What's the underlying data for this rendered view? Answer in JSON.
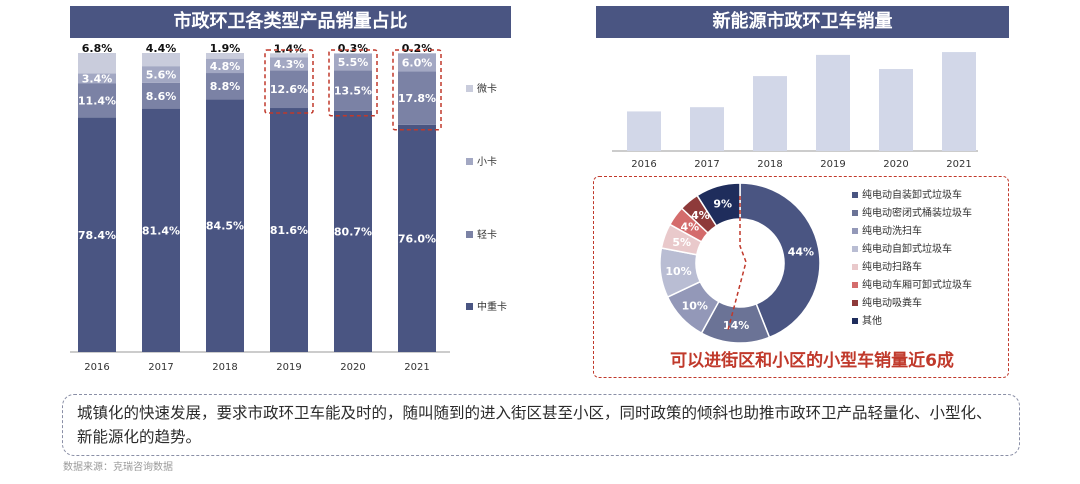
{
  "left_panel": {
    "title": "市政环卫各类型产品销量占比"
  },
  "right_panel": {
    "title": "新能源市政环卫车销量"
  },
  "chart_data": [
    {
      "type": "bar",
      "stacked": true,
      "categories": [
        "2016",
        "2017",
        "2018",
        "2019",
        "2020",
        "2021"
      ],
      "series": [
        {
          "name": "中重卡",
          "color": "#4a5582",
          "values": [
            78.4,
            81.4,
            84.5,
            81.6,
            80.7,
            76.0
          ],
          "labels": [
            "78.4%",
            "81.4%",
            "84.5%",
            "81.6%",
            "80.7%",
            "76.0%"
          ]
        },
        {
          "name": "轻卡",
          "color": "#7b82a5",
          "values": [
            11.4,
            8.6,
            8.8,
            12.6,
            13.5,
            17.8
          ],
          "labels": [
            "11.4%",
            "8.6%",
            "8.8%",
            "12.6%",
            "13.5%",
            "17.8%"
          ]
        },
        {
          "name": "小卡",
          "color": "#a3a8c3",
          "values": [
            3.4,
            5.6,
            4.8,
            4.3,
            5.5,
            6.0
          ],
          "labels": [
            "3.4%",
            "5.6%",
            "4.8%",
            "4.3%",
            "5.5%",
            "6.0%"
          ]
        },
        {
          "name": "微卡",
          "color": "#c9ccdc",
          "values": [
            6.8,
            4.4,
            1.9,
            1.4,
            0.3,
            0.2
          ],
          "labels": [
            "6.8%",
            "4.4%",
            "1.9%",
            "1.4%",
            "0.3%",
            "0.2%"
          ]
        }
      ],
      "legend_position": "right",
      "highlighted_categories": [
        "2019",
        "2020",
        "2021"
      ],
      "ylim": [
        0,
        100
      ]
    },
    {
      "type": "bar",
      "categories": [
        "2016",
        "2017",
        "2018",
        "2019",
        "2020",
        "2021"
      ],
      "values": [
        28,
        31,
        53,
        68,
        58,
        70
      ],
      "color": "#d2d7e8",
      "value_axis_shown": false
    },
    {
      "type": "pie",
      "donut": true,
      "slices": [
        {
          "name": "纯电动自装卸式垃圾车",
          "value": 44,
          "label": "44%",
          "color": "#4a5582"
        },
        {
          "name": "纯电动密闭式桶装垃圾车",
          "value": 14,
          "label": "14%",
          "color": "#6b7396"
        },
        {
          "name": "纯电动洗扫车",
          "value": 10,
          "label": "10%",
          "color": "#9398b8"
        },
        {
          "name": "纯电动自卸式垃圾车",
          "value": 10,
          "label": "10%",
          "color": "#b9bdd3"
        },
        {
          "name": "纯电动扫路车",
          "value": 5,
          "label": "5%",
          "color": "#e9c9cb"
        },
        {
          "name": "纯电动车厢可卸式垃圾车",
          "value": 4,
          "label": "4%",
          "color": "#d46c6c"
        },
        {
          "name": "纯电动吸粪车",
          "value": 4,
          "label": "4%",
          "color": "#8e3a3a"
        },
        {
          "name": "其他",
          "value": 9,
          "label": "9%",
          "color": "#1f2d5c"
        }
      ],
      "legend_position": "right"
    }
  ],
  "donut_caption": "可以进街区和小区的小型车销量近6成",
  "summary": "城镇化的快速发展，要求市政环卫车能及时的，随叫随到的进入街区甚至小区，同时政策的倾斜也助推市政环卫产品轻量化、小型化、新能源化的趋势。",
  "source": "数据来源：克瑞咨询数据"
}
